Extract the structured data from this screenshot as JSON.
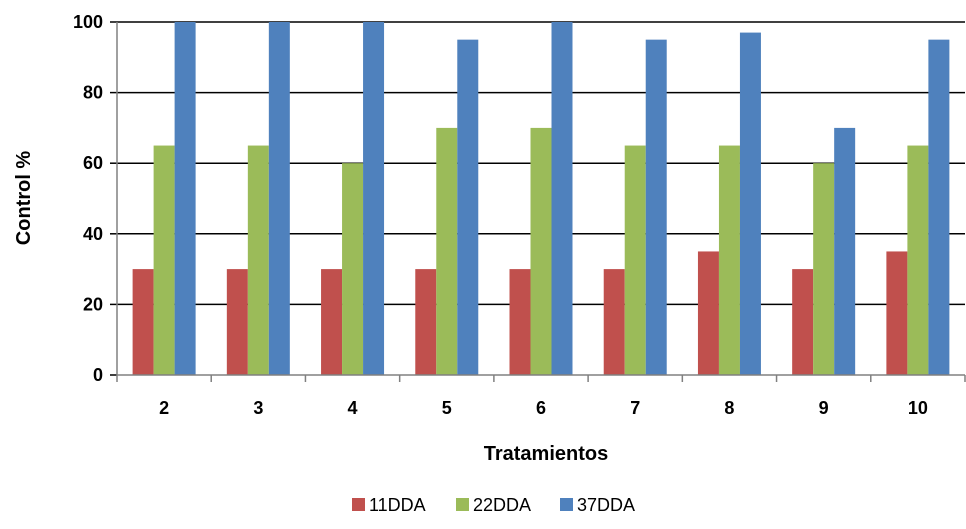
{
  "chart_data": {
    "type": "bar",
    "xlabel": "Tratamientos",
    "ylabel": "Control  %",
    "categories": [
      "2",
      "3",
      "4",
      "5",
      "6",
      "7",
      "8",
      "9",
      "10"
    ],
    "ylim": [
      0,
      100
    ],
    "yticks": [
      0,
      20,
      40,
      60,
      80,
      100
    ],
    "grid": true,
    "legend_position": "bottom",
    "series": [
      {
        "name": "11DDA",
        "color": "#c0504d",
        "values": [
          30,
          30,
          30,
          30,
          30,
          30,
          35,
          30,
          35
        ]
      },
      {
        "name": "22DDA",
        "color": "#9bbb59",
        "values": [
          65,
          65,
          60,
          70,
          70,
          65,
          65,
          60,
          65
        ]
      },
      {
        "name": "37DDA",
        "color": "#4f81bd",
        "values": [
          100,
          100,
          100,
          95,
          100,
          95,
          97,
          70,
          95
        ]
      }
    ]
  }
}
